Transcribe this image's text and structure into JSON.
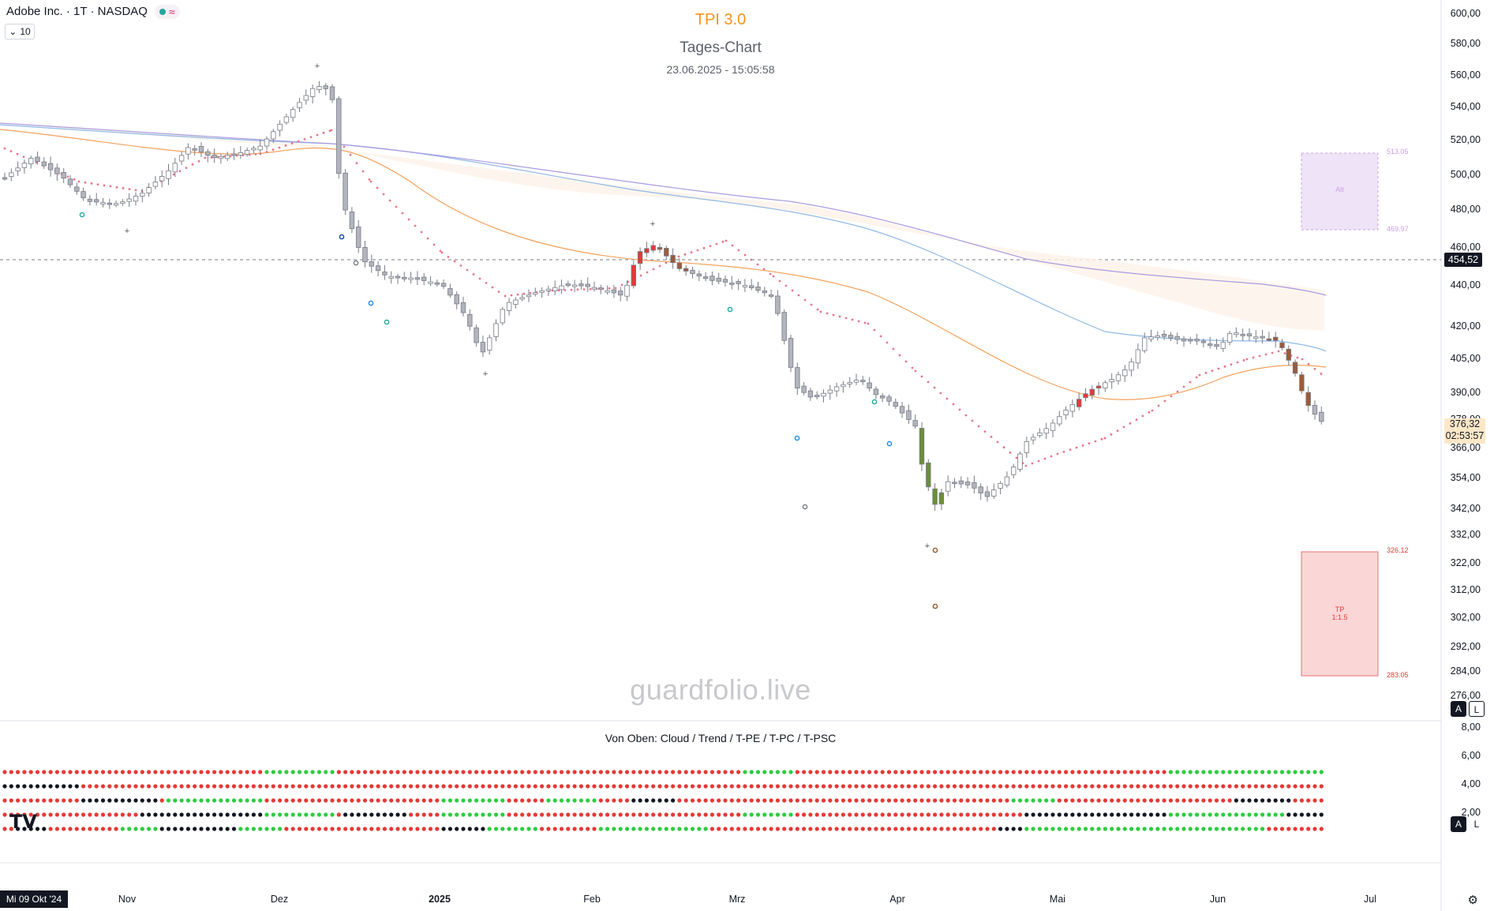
{
  "header": {
    "symbol_line": "Adobe Inc. · 1T · NASDAQ",
    "status_icon": "live-dot-icon",
    "wave_glyph": "≈",
    "collapse_count": "10",
    "chevron_glyph": "⌄"
  },
  "overlay": {
    "indicator_title": "TPI 3.0",
    "chart_title": "Tages-Chart",
    "timestamp": "23.06.2025 - 15:05:58",
    "watermark": "guardfolio.live",
    "pane_caption": "Von Oben: Cloud / Trend / T-PE / T-PC / T-PSC"
  },
  "price_axis": {
    "labels": [
      "600,00",
      "580,00",
      "560,00",
      "540,00",
      "520,00",
      "500,00",
      "480,00",
      "460,00",
      "440,00",
      "420,00",
      "405,00",
      "390,00",
      "378,00",
      "366,00",
      "354,00",
      "342,00",
      "332,00",
      "322,00",
      "312,00",
      "302,00",
      "292,00",
      "284,00",
      "276,00"
    ],
    "last_price_tag": "454,52",
    "current_price": "376,32",
    "countdown": "02:53:57"
  },
  "indicator_axis": {
    "labels": [
      "8,00",
      "6,00",
      "4,00",
      "2,00"
    ]
  },
  "time_axis": {
    "cursor_date": "Mi 09 Okt '24",
    "labels": [
      "Nov",
      "Dez",
      "2025",
      "Feb",
      "Mrz",
      "Apr",
      "Mai",
      "Jun",
      "Jul"
    ]
  },
  "annotations": {
    "alt_box": {
      "label": "Alt",
      "top": "513.05",
      "bottom": "469.97"
    },
    "tp_box": {
      "label1": "TP",
      "label2": "1:1.5",
      "top": "326.12",
      "bottom": "283.05"
    }
  },
  "buttons": {
    "a": "A",
    "l": "L"
  },
  "logo": "TV",
  "colors": {
    "bull_candle": "#ffffff",
    "bear_candle": "#b2b5be",
    "accent_orange": "#f7931a",
    "signal_red": "#e53935",
    "signal_green": "#2ecc40",
    "signal_black": "#131722",
    "ma_orange": "#f5a15a",
    "ma_blue": "#8fb8e6",
    "ma_purple": "#a99ae0"
  },
  "chart_data": {
    "type": "candlestick",
    "title": "Tages-Chart",
    "ylim": [
      276,
      602
    ],
    "x": [
      "Okt '24",
      "Nov",
      "Dez",
      "2025",
      "Feb",
      "Mrz",
      "Apr",
      "Mai",
      "Jun",
      "Jul"
    ],
    "approx_closes": [
      505,
      492,
      510,
      448,
      445,
      462,
      438,
      395,
      348,
      365,
      412,
      412,
      376.32
    ],
    "dot_rows": 5
  }
}
